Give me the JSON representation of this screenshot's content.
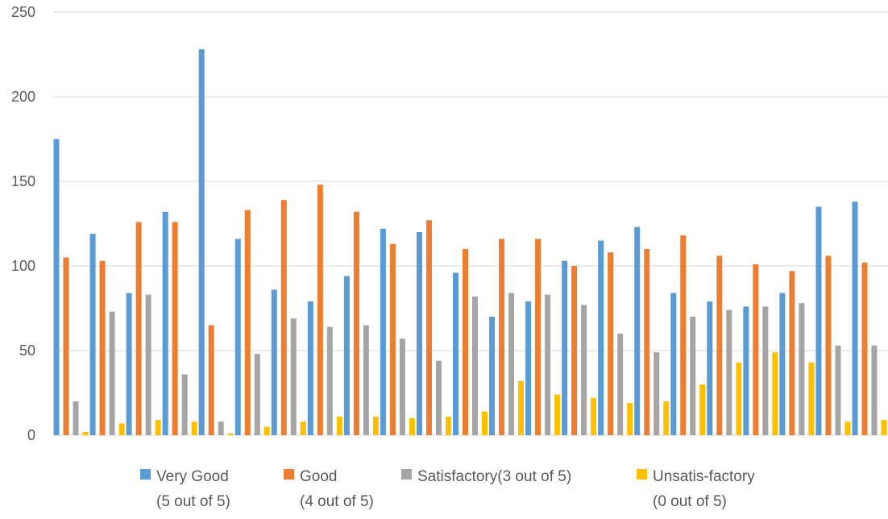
{
  "chart_data": {
    "type": "bar",
    "title": "",
    "xlabel": "",
    "ylabel": "",
    "ylim": [
      0,
      250
    ],
    "yticks": [
      0,
      50,
      100,
      150,
      200,
      250
    ],
    "grid": true,
    "legend_position": "bottom",
    "x_tick_labels_shown": false,
    "series": [
      {
        "name": "Very Good (5 out of 5)",
        "legend_line1": "Very Good",
        "legend_line2": "(5 out of 5)",
        "color": "#5b9bd5",
        "values": [
          175,
          119,
          84,
          132,
          228,
          116,
          86,
          79,
          94,
          122,
          120,
          96,
          70,
          79,
          103,
          115,
          123,
          84,
          79,
          76,
          84,
          135,
          138
        ]
      },
      {
        "name": "Good (4 out of 5)",
        "legend_line1": "Good",
        "legend_line2": "(4 out of 5)",
        "color": "#ed7d31",
        "values": [
          105,
          103,
          126,
          126,
          65,
          133,
          139,
          148,
          132,
          113,
          127,
          110,
          116,
          116,
          100,
          108,
          110,
          118,
          106,
          101,
          97,
          106,
          102
        ]
      },
      {
        "name": "Satisfactory(3 out of 5)",
        "legend_line1": "Satisfactory(3 out of 5)",
        "legend_line2": "",
        "color": "#a5a5a5",
        "values": [
          20,
          73,
          83,
          36,
          8,
          48,
          69,
          64,
          65,
          57,
          44,
          82,
          84,
          83,
          77,
          60,
          49,
          70,
          74,
          76,
          78,
          53,
          53
        ]
      },
      {
        "name": "Unsatis-factory (0 out of 5)",
        "legend_line1": "Unsatis-factory",
        "legend_line2": "(0 out of 5)",
        "color": "#ffc000",
        "values": [
          2,
          7,
          9,
          8,
          1,
          5,
          8,
          11,
          11,
          10,
          11,
          14,
          32,
          24,
          22,
          19,
          20,
          30,
          43,
          49,
          43,
          8,
          9
        ]
      }
    ]
  }
}
